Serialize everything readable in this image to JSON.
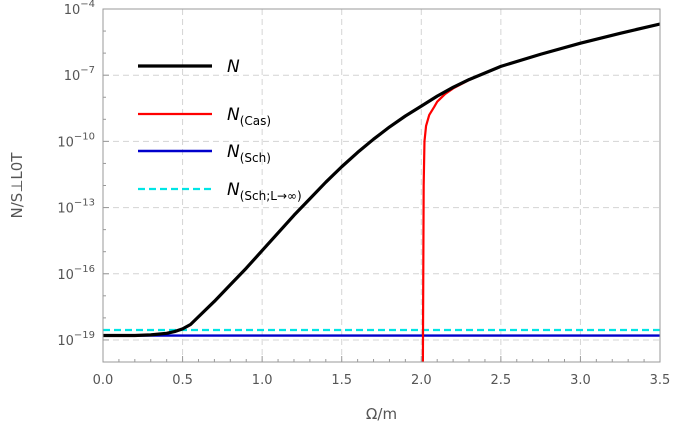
{
  "chart_data": {
    "type": "line",
    "xlabel": "Ω/m",
    "ylabel": "N/S⊥L0T",
    "xlim": [
      0,
      3.5
    ],
    "ylim_log10": [
      -20,
      -4
    ],
    "y_scale": "log",
    "grid": true,
    "legend_placement": "top-left",
    "x_ticks": [
      "0.0",
      "0.5",
      "1.0",
      "1.5",
      "2.0",
      "2.5",
      "3.0",
      "3.5"
    ],
    "x_tick_values": [
      0,
      0.5,
      1.0,
      1.5,
      2.0,
      2.5,
      3.0,
      3.5
    ],
    "y_ticks": [
      {
        "exp": -4,
        "label": "10",
        "sup": "−4"
      },
      {
        "exp": -7,
        "label": "10",
        "sup": "−7"
      },
      {
        "exp": -10,
        "label": "10",
        "sup": "−10"
      },
      {
        "exp": -13,
        "label": "10",
        "sup": "−13"
      },
      {
        "exp": -16,
        "label": "10",
        "sup": "−16"
      },
      {
        "exp": -19,
        "label": "10",
        "sup": "−19"
      }
    ],
    "series": [
      {
        "name": "N",
        "color": "#000000",
        "style": "solid",
        "x": [
          0.0,
          0.1,
          0.2,
          0.3,
          0.4,
          0.45,
          0.5,
          0.55,
          0.6,
          0.7,
          0.8,
          0.9,
          1.0,
          1.1,
          1.2,
          1.3,
          1.4,
          1.5,
          1.6,
          1.7,
          1.8,
          1.9,
          2.0,
          2.1,
          2.2,
          2.3,
          2.4,
          2.5,
          2.75,
          3.0,
          3.25,
          3.5
        ],
        "log10_y": [
          -18.8,
          -18.8,
          -18.8,
          -18.77,
          -18.7,
          -18.62,
          -18.5,
          -18.3,
          -17.95,
          -17.25,
          -16.5,
          -15.75,
          -14.95,
          -14.15,
          -13.35,
          -12.6,
          -11.85,
          -11.15,
          -10.5,
          -9.9,
          -9.35,
          -8.85,
          -8.4,
          -7.95,
          -7.55,
          -7.2,
          -6.9,
          -6.6,
          -6.05,
          -5.55,
          -5.1,
          -4.68
        ]
      },
      {
        "name": "N(Cas)",
        "color": "#ff0000",
        "style": "solid",
        "x": [
          2.01,
          2.015,
          2.02,
          2.03,
          2.05,
          2.08,
          2.1,
          2.15,
          2.2,
          2.3,
          2.4,
          2.5,
          2.75,
          3.0,
          3.25,
          3.5
        ],
        "log10_y": [
          -20.0,
          -12.0,
          -10.0,
          -9.3,
          -8.8,
          -8.45,
          -8.2,
          -7.85,
          -7.6,
          -7.22,
          -6.9,
          -6.6,
          -6.05,
          -5.55,
          -5.1,
          -4.68
        ]
      },
      {
        "name": "N(Sch)",
        "color": "#0000cc",
        "style": "solid",
        "x": [
          0.0,
          3.5
        ],
        "log10_y": [
          -18.8,
          -18.8
        ]
      },
      {
        "name": "N(Sch;L→∞)",
        "color": "#00e5e5",
        "style": "dashed",
        "x": [
          0.0,
          3.5
        ],
        "log10_y": [
          -18.55,
          -18.55
        ]
      }
    ],
    "legend": [
      {
        "main": "N",
        "sub": ""
      },
      {
        "main": "N",
        "sub": "(Cas)"
      },
      {
        "main": "N",
        "sub": "(Sch)"
      },
      {
        "main": "N",
        "sub": "(Sch;L→∞)"
      }
    ]
  }
}
